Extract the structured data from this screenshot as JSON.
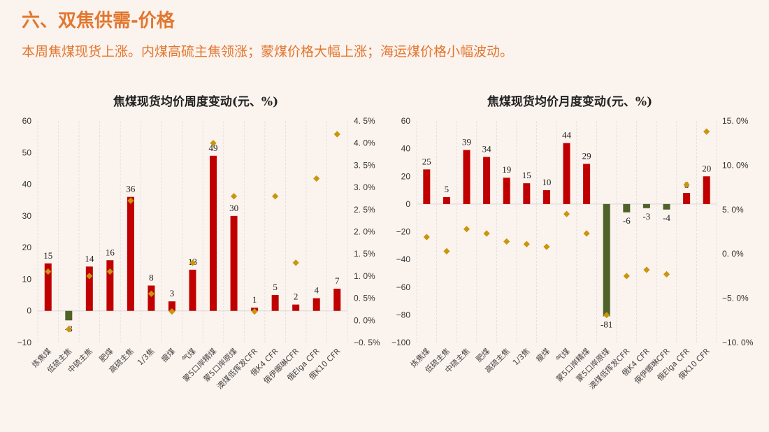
{
  "header": {
    "title": "六、双焦供需-价格",
    "subtitle": "本周焦煤现货上涨。内煤高硫主焦领涨；蒙煤价格大幅上涨；海运煤价格小幅波动。"
  },
  "colors": {
    "title": "#E2772F",
    "background": "#FBF3EE",
    "bar_positive": "#C00000",
    "bar_negative": "#4F6228",
    "diamond": "#C9960C",
    "grid": "#DDDDDD"
  },
  "chart_data": [
    {
      "type": "bar+scatter",
      "title": "焦煤现货均价周度变动(元、%)",
      "categories": [
        "炼焦煤",
        "低硫主焦",
        "中硫主焦",
        "肥煤",
        "高硫主焦",
        "1/3焦",
        "瘦煤",
        "气煤",
        "蒙5口岸精煤",
        "蒙5口岸原煤",
        "澳煤低挥发CFR",
        "俄K4 CFR",
        "俄伊娜琳CFR",
        "俄Elga CFR",
        "俄K10 CFR"
      ],
      "bars": {
        "axis": "left",
        "unit": "元",
        "values": [
          15,
          -3,
          14,
          16,
          36,
          8,
          3,
          13,
          49,
          30,
          1,
          5,
          2,
          4,
          7
        ]
      },
      "diamonds": {
        "axis": "right",
        "unit": "%",
        "values": [
          1.1,
          -0.2,
          1.0,
          1.1,
          2.7,
          0.6,
          0.2,
          1.3,
          4.0,
          2.8,
          0.2,
          2.8,
          1.3,
          3.2,
          4.2
        ]
      },
      "ylim": [
        -10,
        60
      ],
      "yticks": [
        "60",
        "50",
        "40",
        "30",
        "20",
        "10",
        "0",
        "−10"
      ],
      "y2lim": [
        -0.5,
        4.5
      ],
      "y2ticks": [
        "4. 5%",
        "4. 0%",
        "3. 5%",
        "3. 0%",
        "2. 5%",
        "2. 0%",
        "1. 5%",
        "1. 0%",
        "0. 5%",
        "0. 0%",
        "−0. 5%"
      ],
      "grid": "vertical dashed",
      "legend": "none"
    },
    {
      "type": "bar+scatter",
      "title": "焦煤现货均价月度变动(元、%)",
      "categories": [
        "炼焦煤",
        "低硫主焦",
        "中硫主焦",
        "肥煤",
        "高硫主焦",
        "1/3焦",
        "瘦煤",
        "气煤",
        "蒙5口岸精煤",
        "蒙5口岸原煤",
        "澳煤低挥发CFR",
        "俄K4 CFR",
        "俄伊娜琳CFR",
        "俄Elga CFR",
        "俄K10 CFR"
      ],
      "bars": {
        "axis": "left",
        "unit": "元",
        "values": [
          25,
          5,
          39,
          34,
          19,
          15,
          10,
          44,
          29,
          -81,
          -6,
          -3,
          -4,
          8,
          20
        ]
      },
      "diamonds": {
        "axis": "right",
        "unit": "%",
        "values": [
          1.9,
          0.3,
          2.8,
          2.3,
          1.4,
          1.1,
          0.8,
          4.5,
          2.3,
          -6.9,
          -2.5,
          -1.8,
          -2.3,
          7.8,
          13.8
        ]
      },
      "ylim": [
        -100,
        60
      ],
      "yticks": [
        "60",
        "40",
        "20",
        "0",
        "−20",
        "−40",
        "−60",
        "−80",
        "−100"
      ],
      "y2lim": [
        -10,
        15
      ],
      "y2ticks": [
        "15. 0%",
        "10. 0%",
        "5. 0%",
        "0. 0%",
        "−5. 0%",
        "−10. 0%"
      ],
      "grid": "vertical dashed",
      "legend": "none"
    }
  ]
}
